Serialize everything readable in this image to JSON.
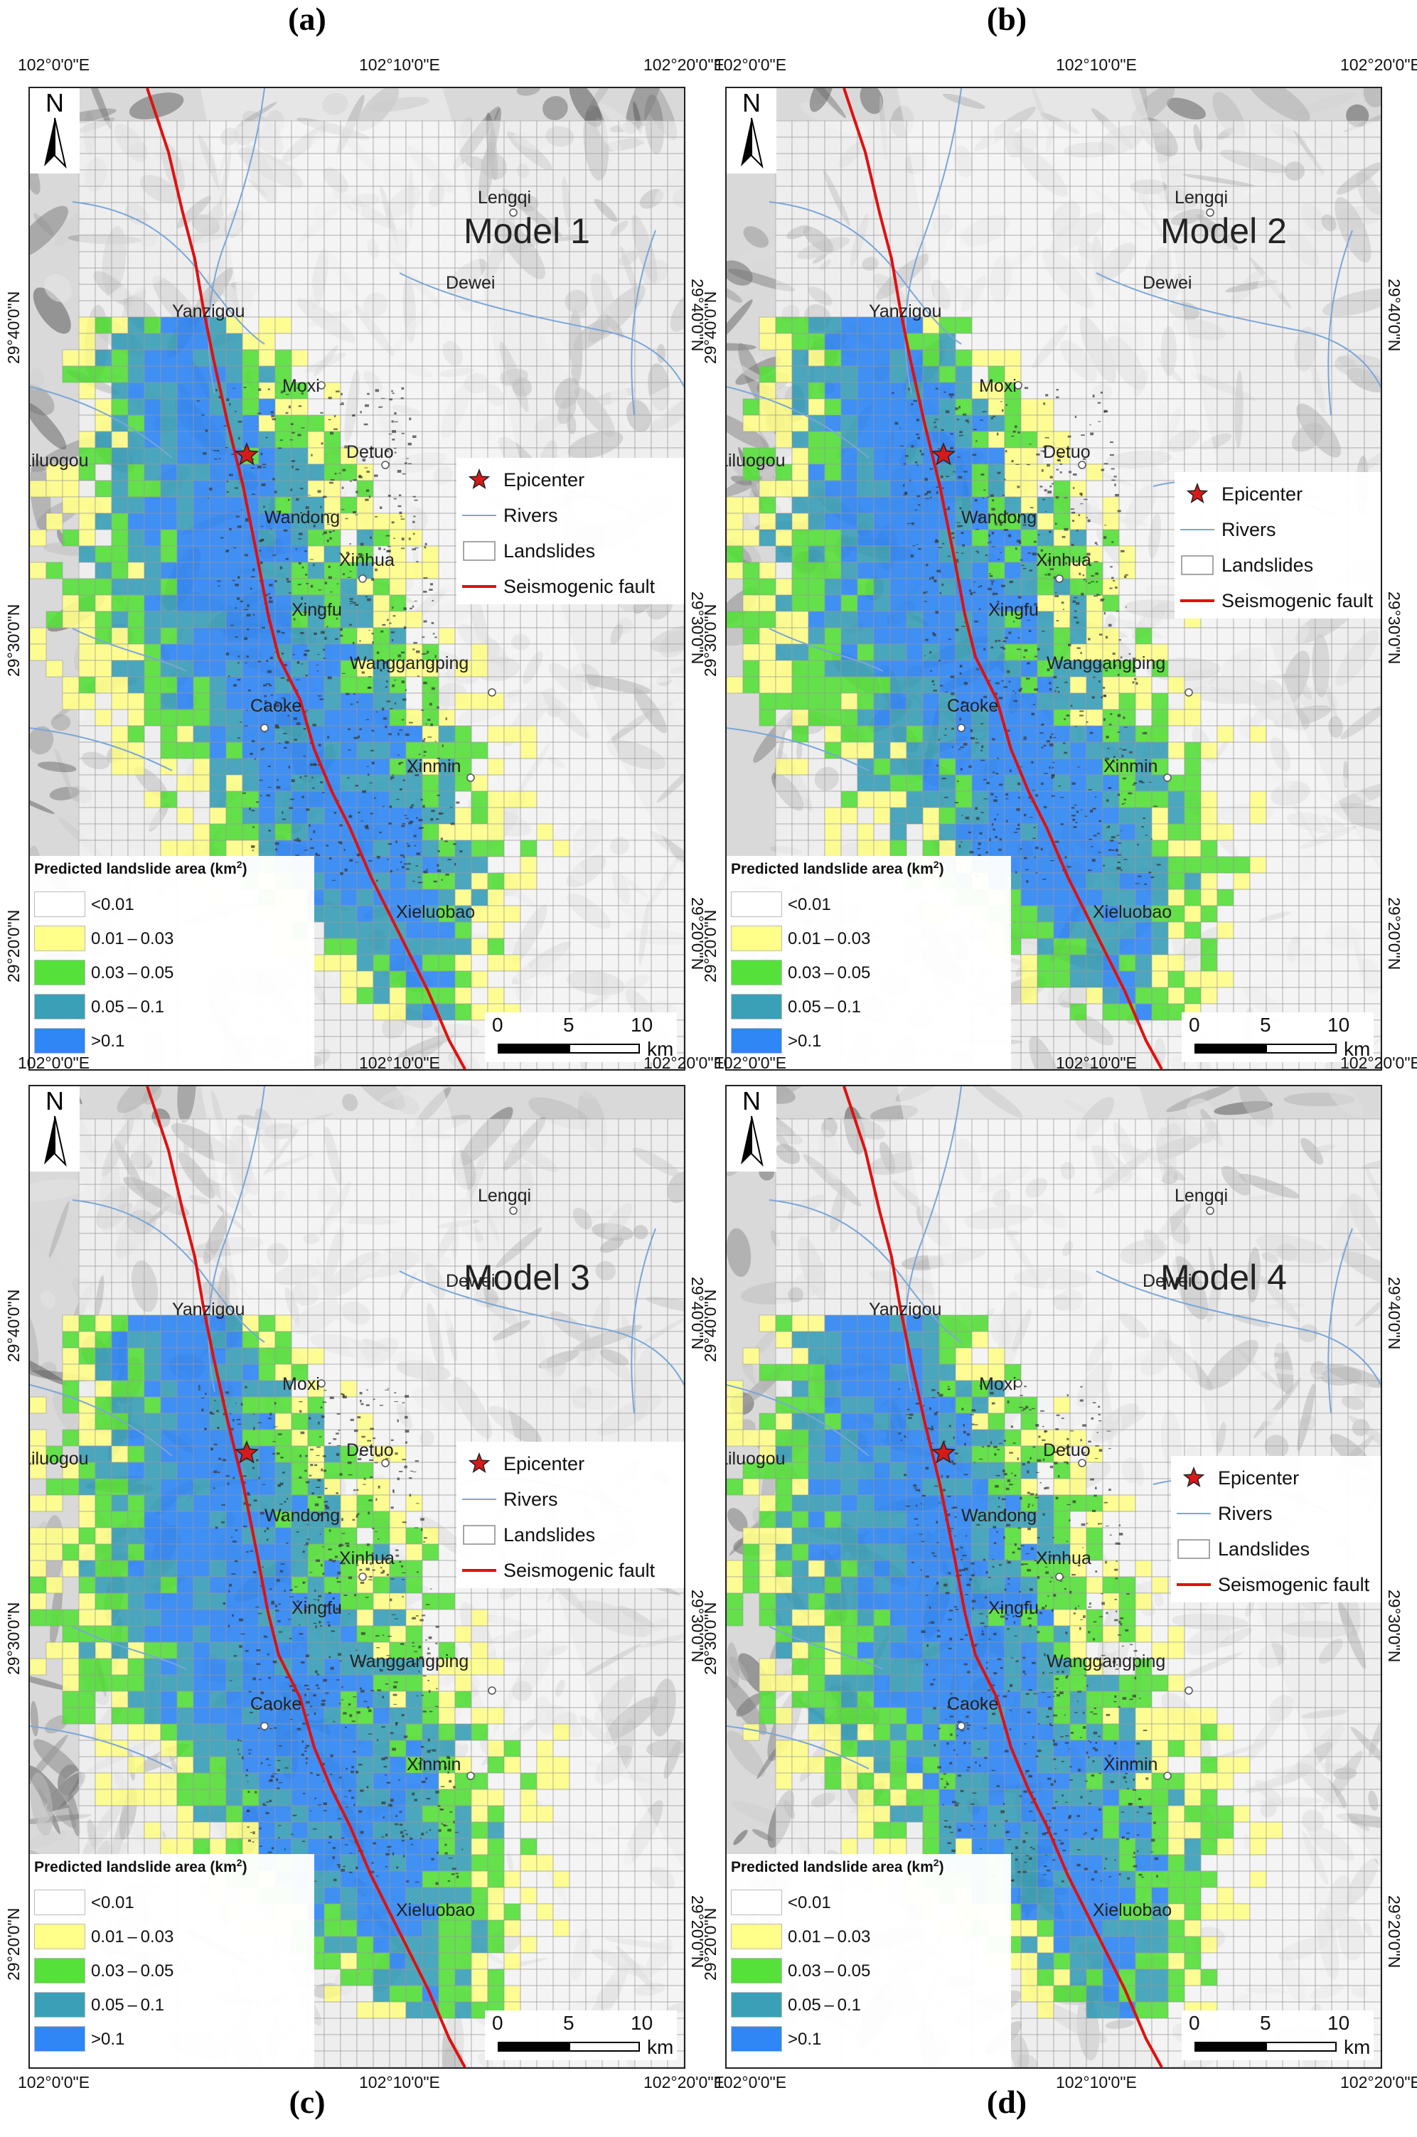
{
  "panel_labels": [
    "(a)",
    "(b)",
    "(c)",
    "(d)"
  ],
  "model_titles": [
    "Model 1",
    "Model 2",
    "Model 3",
    "Model 4"
  ],
  "graticule": {
    "top_lon": [
      "102°0'0\"E",
      "102°10'0\"E",
      "102°20'0\"E"
    ],
    "bottom_lon": [
      "102°0'0\"E",
      "102°10'0\"E",
      "102°20'0\"E"
    ],
    "lat": [
      "29°40'0\"N",
      "29°30'0\"N",
      "29°20'0\"N"
    ]
  },
  "towns": [
    "Lengqi",
    "Dewei",
    "Yanzigou",
    "Moxi",
    "Hailuogou",
    "Detuo",
    "Wandong",
    "Xinhua",
    "Xingfu",
    "Wanggangping",
    "Caoke",
    "Xinmin",
    "Xieluobao"
  ],
  "north_arrow": {
    "letter": "N",
    "icon": "north-arrow-icon"
  },
  "map_legend": {
    "epicenter": "Epicenter",
    "rivers": "Rivers",
    "landslides": "Landslides",
    "fault": "Seismogenic fault"
  },
  "area_legend": {
    "title_prefix": "Predicted landslide area (km",
    "title_sup": "2",
    "title_suffix": ")",
    "classes": [
      {
        "label": "<0.01",
        "color": "#ffffff"
      },
      {
        "label": "0.01 – 0.03",
        "color": "#ffff8a"
      },
      {
        "label": "0.03 – 0.05",
        "color": "#55e03a"
      },
      {
        "label": "0.05 – 0.1",
        "color": "#3aa0b8"
      },
      {
        "label": ">0.1",
        "color": "#2f86f5"
      }
    ]
  },
  "scale_bar": {
    "ticks": [
      "0",
      "5",
      "10"
    ],
    "unit": "km"
  },
  "colors": {
    "fault": "#e01010",
    "river": "#7aa6d8",
    "epicenter": "#d61a1a",
    "grid": "#9a9a9a"
  }
}
